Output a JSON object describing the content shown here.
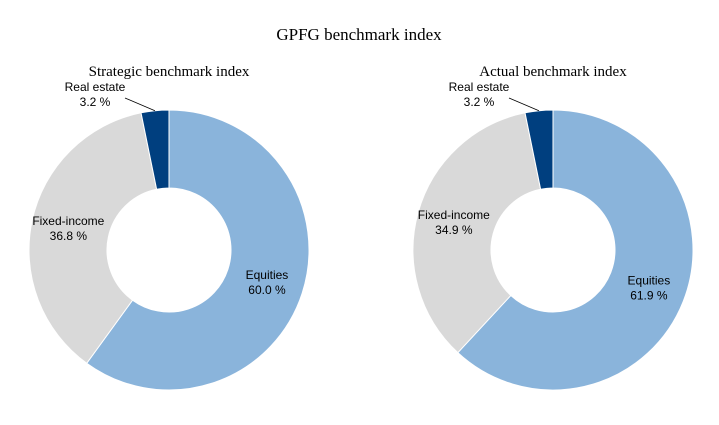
{
  "title": "GPFG benchmark index",
  "chart_data": [
    {
      "type": "pie",
      "title": "Strategic benchmark index",
      "donut": true,
      "categories": [
        "Equities",
        "Fixed-income",
        "Real estate"
      ],
      "values": [
        60.0,
        36.8,
        3.2
      ],
      "value_labels": [
        "60.0 %",
        "36.8 %",
        "3.2 %"
      ],
      "colors": [
        "#8ab4db",
        "#d9d9d9",
        "#003f7f"
      ]
    },
    {
      "type": "pie",
      "title": "Actual benchmark index",
      "donut": true,
      "categories": [
        "Equities",
        "Fixed-income",
        "Real estate"
      ],
      "values": [
        61.9,
        34.9,
        3.2
      ],
      "value_labels": [
        "61.9 %",
        "34.9 %",
        "3.2 %"
      ],
      "colors": [
        "#8ab4db",
        "#d9d9d9",
        "#003f7f"
      ]
    }
  ]
}
